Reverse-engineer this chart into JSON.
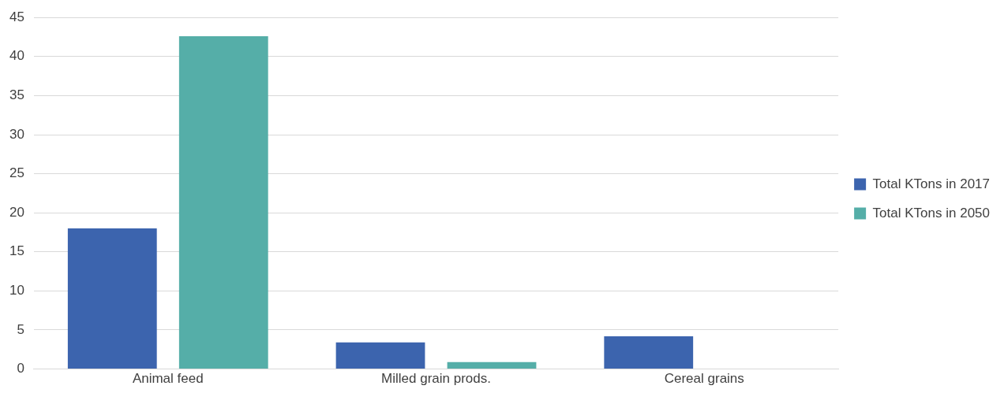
{
  "chart_data": {
    "type": "bar",
    "categories": [
      "Animal feed",
      "Milled grain prods.",
      "Cereal grains"
    ],
    "series": [
      {
        "name": "Total KTons in 2017",
        "color": "#3c64ae",
        "values": [
          18,
          3.4,
          4.2
        ]
      },
      {
        "name": "Total KTons in 2050",
        "color": "#55aea8",
        "values": [
          42.6,
          0.9,
          0
        ]
      }
    ],
    "ylim": [
      0,
      45
    ],
    "yticks": [
      0,
      5,
      10,
      15,
      20,
      25,
      30,
      35,
      40,
      45
    ],
    "grid": "y",
    "legend": "right"
  }
}
